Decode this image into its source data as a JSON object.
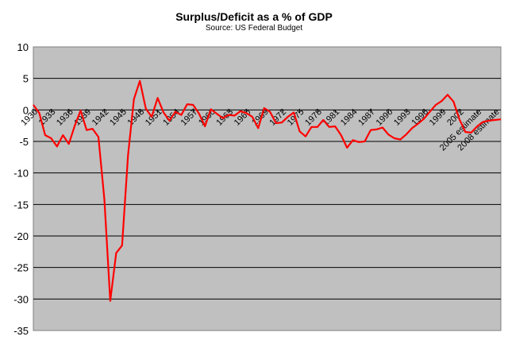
{
  "chart_data": {
    "type": "line",
    "title": "Surplus/Deficit as a % of GDP",
    "subtitle": "Source: US Federal Budget",
    "xlabel": "",
    "ylabel": "",
    "ylim": [
      -35,
      10
    ],
    "yticks": [
      10,
      5,
      0,
      -5,
      -10,
      -15,
      -20,
      -25,
      -30,
      -35
    ],
    "grid": true,
    "legend": "none",
    "x_tick_labels": [
      "1930",
      "1933",
      "1936",
      "1939",
      "1942",
      "1945",
      "1948",
      "1951",
      "1954",
      "1957",
      "1960",
      "1963",
      "1966",
      "1969",
      "1972",
      "1975",
      "1978",
      "1981",
      "1984",
      "1987",
      "1990",
      "1993",
      "1996",
      "1999",
      "2002",
      "2005 estimate",
      "2008 estimate"
    ],
    "series": [
      {
        "color": "#ff0000",
        "x": [
          1930,
          1931,
          1932,
          1933,
          1934,
          1935,
          1936,
          1937,
          1938,
          1939,
          1940,
          1941,
          1942,
          1943,
          1944,
          1945,
          1946,
          1947,
          1948,
          1949,
          1950,
          1951,
          1952,
          1953,
          1954,
          1955,
          1956,
          1957,
          1958,
          1959,
          1960,
          1961,
          1962,
          1963,
          1964,
          1965,
          1966,
          1967,
          1968,
          1969,
          1970,
          1971,
          1972,
          1973,
          1974,
          1975,
          1976,
          1977,
          1978,
          1979,
          1980,
          1981,
          1982,
          1983,
          1984,
          1985,
          1986,
          1987,
          1988,
          1989,
          1990,
          1991,
          1992,
          1993,
          1994,
          1995,
          1996,
          1997,
          1998,
          1999,
          2000,
          2001,
          2002,
          2003,
          2004,
          2005,
          2006,
          2007,
          2008,
          2009
        ],
        "values": [
          0.8,
          -0.5,
          -4.0,
          -4.5,
          -5.8,
          -4.0,
          -5.4,
          -2.5,
          -0.1,
          -3.2,
          -3.0,
          -4.3,
          -14.2,
          -30.3,
          -22.7,
          -21.5,
          -7.2,
          1.7,
          4.6,
          0.2,
          -1.1,
          1.9,
          -0.4,
          -1.7,
          -0.3,
          -0.8,
          0.9,
          0.8,
          -0.6,
          -2.6,
          0.1,
          -0.6,
          -1.3,
          -0.8,
          -0.9,
          -0.2,
          -0.5,
          -1.1,
          -2.9,
          0.3,
          -0.3,
          -2.1,
          -2.0,
          -1.1,
          -0.4,
          -3.4,
          -4.2,
          -2.7,
          -2.7,
          -1.6,
          -2.7,
          -2.6,
          -4.0,
          -6.0,
          -4.8,
          -5.1,
          -5.0,
          -3.2,
          -3.1,
          -2.8,
          -3.9,
          -4.5,
          -4.7,
          -3.9,
          -2.9,
          -2.2,
          -1.4,
          -0.3,
          0.8,
          1.4,
          2.4,
          1.3,
          -1.5,
          -3.5,
          -3.6,
          -2.6,
          -1.9,
          -1.7,
          -1.6,
          -1.5
        ]
      }
    ]
  }
}
